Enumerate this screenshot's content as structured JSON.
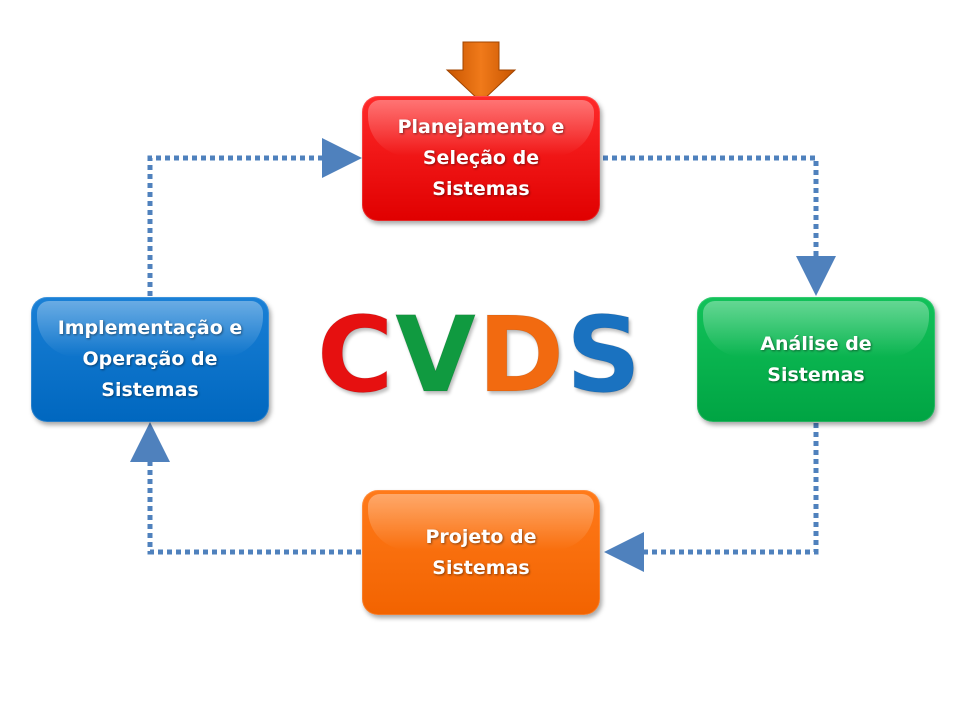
{
  "diagram": {
    "title_letters": [
      {
        "char": "C",
        "color": "#e61010"
      },
      {
        "char": "V",
        "color": "#109a40"
      },
      {
        "char": "D",
        "color": "#f26a10"
      },
      {
        "char": "S",
        "color": "#1a72c0"
      }
    ],
    "nodes": {
      "planejamento": {
        "label": "Planejamento e\nSeleção de\nSistemas",
        "color": "#e00000"
      },
      "analise": {
        "label": "Análise de\nSistemas",
        "color": "#00a443"
      },
      "projeto": {
        "label": "Projeto de\nSistemas",
        "color": "#f26300"
      },
      "implementacao": {
        "label": "Implementação e\nOperação de\nSistemas",
        "color": "#0067bf"
      }
    },
    "connector_color": "#4f81bd",
    "entry_arrow_color": "#e26b0a"
  }
}
